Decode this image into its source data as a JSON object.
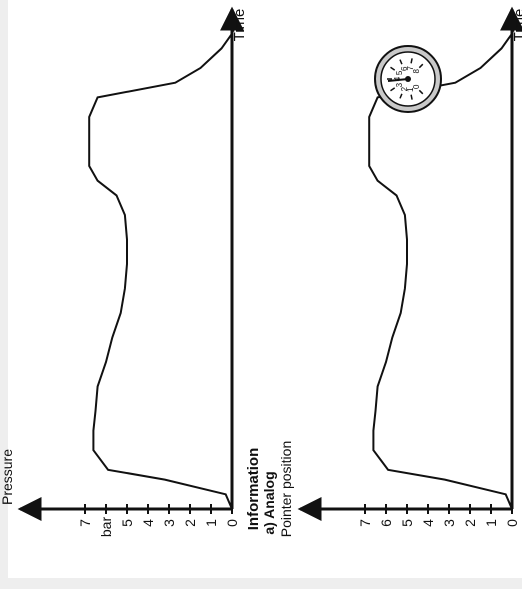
{
  "figure": {
    "heading": "Information",
    "subheading": "a) Analog",
    "top_panel": {
      "y_label": "Pressure",
      "unit_label": "bar",
      "time_label": "Time",
      "ticks": [
        "0",
        "1",
        "2",
        "3",
        "4",
        "5",
        "7"
      ]
    },
    "bottom_panel": {
      "y_label": "Pointer position",
      "time_label": "Time",
      "ticks": [
        "0",
        "1",
        "2",
        "3",
        "4",
        "5",
        "6",
        "7"
      ],
      "gauge_dial": [
        "0",
        "1",
        "2",
        "3",
        "4",
        "5",
        "6",
        "7",
        "8"
      ]
    }
  },
  "chart_data": [
    {
      "type": "line",
      "title": "",
      "xlabel": "Time",
      "ylabel": "Pressure",
      "yunit": "bar",
      "ylim": [
        0,
        7.5
      ],
      "series": [
        {
          "x": [
            0,
            0.03,
            0.06,
            0.08,
            0.12,
            0.16,
            0.2,
            0.25,
            0.3,
            0.35,
            0.4,
            0.45,
            0.5,
            0.55,
            0.6,
            0.64,
            0.67,
            0.7,
            0.75,
            0.8,
            0.84,
            0.87,
            0.9,
            0.94,
            0.97
          ],
          "y": [
            0,
            0.3,
            3.2,
            5.9,
            6.6,
            6.6,
            6.5,
            6.4,
            6.0,
            5.7,
            5.3,
            5.1,
            5.0,
            5.0,
            5.1,
            5.5,
            6.4,
            6.8,
            6.8,
            6.8,
            6.4,
            2.7,
            1.5,
            0.5,
            0
          ]
        }
      ]
    },
    {
      "type": "line",
      "title": "",
      "xlabel": "Time",
      "ylabel": "Pointer position",
      "ylim": [
        0,
        7.5
      ],
      "series": [
        {
          "x": [
            0,
            0.03,
            0.06,
            0.08,
            0.12,
            0.16,
            0.2,
            0.25,
            0.3,
            0.35,
            0.4,
            0.45,
            0.5,
            0.55,
            0.6,
            0.64,
            0.67,
            0.7,
            0.75,
            0.8,
            0.84,
            0.87,
            0.9,
            0.94,
            0.97
          ],
          "y": [
            0,
            0.3,
            3.2,
            5.9,
            6.6,
            6.6,
            6.5,
            6.4,
            6.0,
            5.7,
            5.3,
            5.1,
            5.0,
            5.0,
            5.1,
            5.5,
            6.4,
            6.8,
            6.8,
            6.8,
            6.4,
            2.7,
            1.5,
            0.5,
            0
          ]
        }
      ]
    }
  ]
}
